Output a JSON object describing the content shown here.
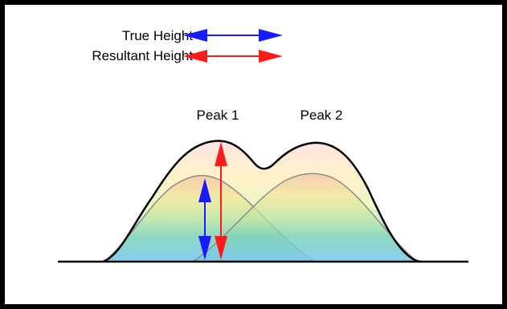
{
  "legend": {
    "items": [
      {
        "label": "True Height",
        "color": "#1a1aff"
      },
      {
        "label": "Resultant Height",
        "color": "#ff1a1a"
      }
    ]
  },
  "peaks": [
    {
      "label": "Peak 1"
    },
    {
      "label": "Peak 2"
    }
  ],
  "colors": {
    "true_height": "#1a1aff",
    "resultant_height": "#ff1a1a",
    "border": "#000000"
  }
}
